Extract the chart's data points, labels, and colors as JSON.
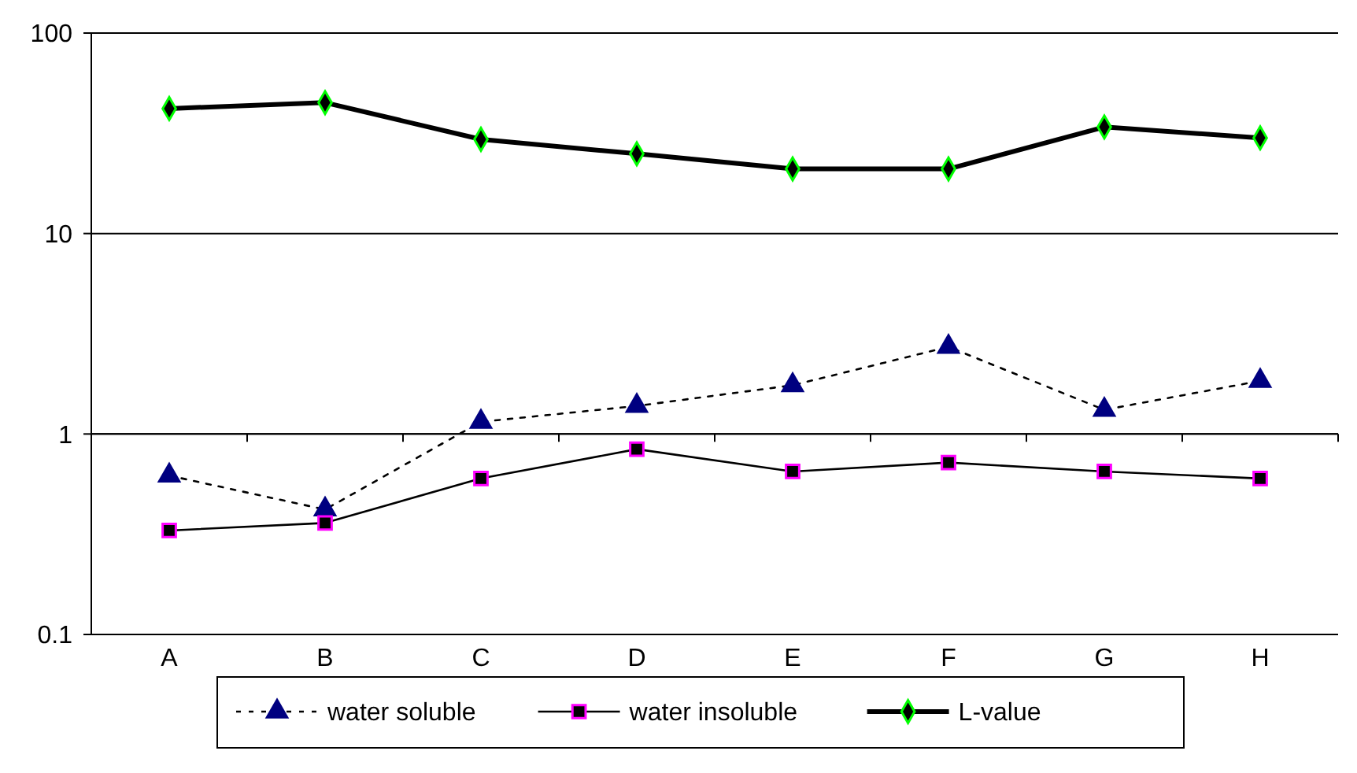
{
  "chart_data": {
    "type": "line",
    "categories": [
      "A",
      "B",
      "C",
      "D",
      "E",
      "F",
      "G",
      "H"
    ],
    "series": [
      {
        "name": "water soluble",
        "color": "#000080",
        "marker": "triangle",
        "line_style": "dotted",
        "values": [
          0.62,
          0.42,
          1.15,
          1.38,
          1.75,
          2.72,
          1.32,
          1.84
        ]
      },
      {
        "name": "water insoluble",
        "color": "#000000",
        "marker": "square",
        "line_style": "solid",
        "values": [
          0.33,
          0.36,
          0.6,
          0.84,
          0.65,
          0.72,
          0.65,
          0.6
        ]
      },
      {
        "name": "L-value",
        "color": "#000000",
        "marker": "diamond",
        "line_style": "solid",
        "values": [
          42,
          45,
          29.5,
          25,
          21,
          21,
          34,
          30
        ]
      }
    ],
    "log": true,
    "ylim": [
      0.1,
      100
    ],
    "yticks": [
      0.1,
      1,
      10,
      100
    ],
    "grid": "y",
    "legend": "bottom"
  }
}
